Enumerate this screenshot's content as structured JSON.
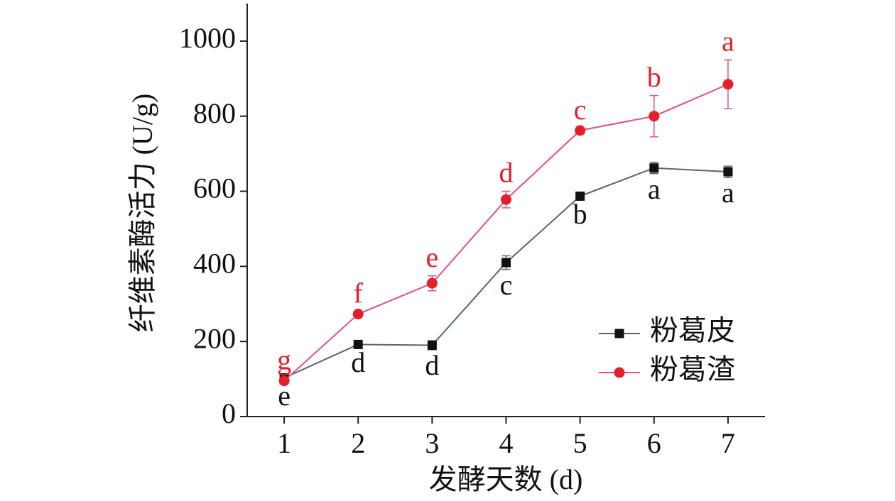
{
  "chart_data": {
    "type": "line",
    "x_label": "发酵天数 (d)",
    "y_label": "纤维素酶活力 (U/g)",
    "x": [
      1,
      2,
      3,
      4,
      5,
      6,
      7
    ],
    "xlim": [
      0.5,
      7.5
    ],
    "xticks": [
      1,
      2,
      3,
      4,
      5,
      6,
      7
    ],
    "ylim": [
      0,
      1100
    ],
    "yticks": [
      0,
      200,
      400,
      600,
      800,
      1000
    ],
    "legend": "right",
    "series": [
      {
        "name": "粉葛皮",
        "color": "#111111",
        "line_color": "#56656f",
        "marker": "square",
        "values": [
          103,
          192,
          190,
          410,
          587,
          662,
          652
        ],
        "errors": [
          6,
          6,
          12,
          18,
          6,
          15,
          15
        ],
        "labels": [
          "e",
          "d",
          "d",
          "c",
          "b",
          "a",
          "a"
        ],
        "label_position": "below"
      },
      {
        "name": "粉葛渣",
        "color": "#e3202a",
        "line_color": "#e0508a",
        "marker": "circle",
        "values": [
          95,
          273,
          355,
          578,
          762,
          800,
          885
        ],
        "errors": [
          6,
          6,
          20,
          22,
          6,
          55,
          65
        ],
        "labels": [
          "g",
          "f",
          "e",
          "d",
          "c",
          "b",
          "a"
        ],
        "label_position": "above"
      }
    ]
  }
}
